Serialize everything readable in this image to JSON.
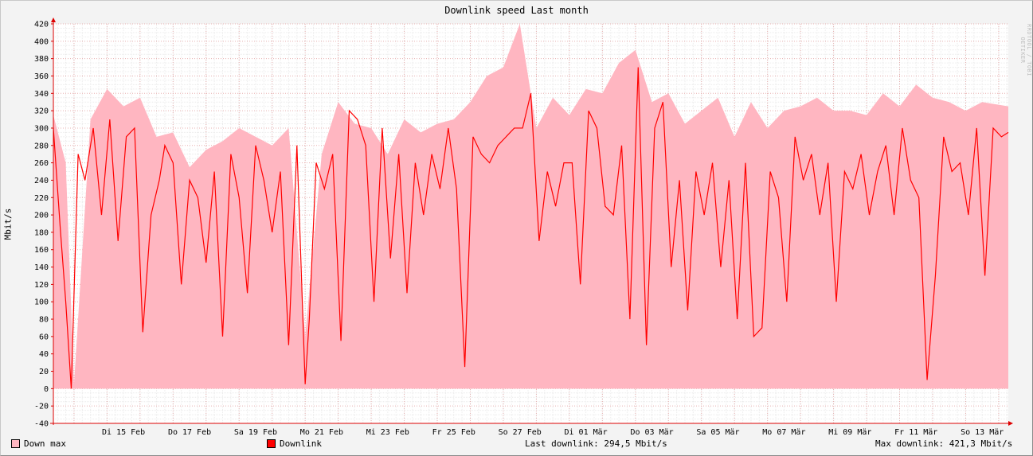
{
  "title": "Downlink speed Last month",
  "watermark": "RRDTOOL / TOBI OETIKER",
  "chart_data": {
    "type": "area",
    "title": "Downlink speed Last month",
    "ylabel": "Mbit/s",
    "xlabel": "",
    "ylim": [
      -40,
      420
    ],
    "yticks": [
      420,
      400,
      380,
      360,
      340,
      320,
      300,
      280,
      260,
      240,
      220,
      200,
      180,
      160,
      140,
      120,
      100,
      80,
      60,
      40,
      20,
      0,
      -20,
      -40
    ],
    "xlim": [
      "2022-02-13T09:00",
      "2022-03-14T07:00"
    ],
    "x_tick_labels": [
      "Di 15 Feb",
      "Do 17 Feb",
      "Sa 19 Feb",
      "Mo 21 Feb",
      "Mi 23 Feb",
      "Fr 25 Feb",
      "So 27 Feb",
      "Di 01 Mär",
      "Do 03 Mär",
      "Sa 05 Mär",
      "Mo 07 Mär",
      "Mi 09 Mär",
      "Fr 11 Mär",
      "So 13 Mär"
    ],
    "grid": true,
    "legend_position": "bottom",
    "series": [
      {
        "name": "Down max",
        "color": "#ffb6c1",
        "x": [
          "2022-02-13T09:00",
          "2022-02-13T18:00",
          "2022-02-14T00:00",
          "2022-02-14T12:00",
          "2022-02-15T00:00",
          "2022-02-15T12:00",
          "2022-02-16T00:00",
          "2022-02-16T12:00",
          "2022-02-17T00:00",
          "2022-02-17T12:00",
          "2022-02-18T00:00",
          "2022-02-18T12:00",
          "2022-02-19T00:00",
          "2022-02-19T12:00",
          "2022-02-20T00:00",
          "2022-02-20T12:00",
          "2022-02-21T00:00",
          "2022-02-21T12:00",
          "2022-02-22T00:00",
          "2022-02-22T12:00",
          "2022-02-23T00:00",
          "2022-02-23T12:00",
          "2022-02-24T00:00",
          "2022-02-24T12:00",
          "2022-02-25T00:00",
          "2022-02-25T12:00",
          "2022-02-26T00:00",
          "2022-02-26T12:00",
          "2022-02-27T00:00",
          "2022-02-27T12:00",
          "2022-02-28T00:00",
          "2022-02-28T12:00",
          "2022-03-01T00:00",
          "2022-03-01T12:00",
          "2022-03-02T00:00",
          "2022-03-02T12:00",
          "2022-03-03T00:00",
          "2022-03-03T12:00",
          "2022-03-04T00:00",
          "2022-03-04T12:00",
          "2022-03-05T00:00",
          "2022-03-05T12:00",
          "2022-03-06T00:00",
          "2022-03-06T12:00",
          "2022-03-07T00:00",
          "2022-03-07T12:00",
          "2022-03-08T00:00",
          "2022-03-08T12:00",
          "2022-03-09T00:00",
          "2022-03-09T12:00",
          "2022-03-10T00:00",
          "2022-03-10T12:00",
          "2022-03-11T00:00",
          "2022-03-11T12:00",
          "2022-03-12T00:00",
          "2022-03-12T12:00",
          "2022-03-13T00:00",
          "2022-03-13T12:00",
          "2022-03-14T07:00"
        ],
        "values": [
          315,
          260,
          5,
          310,
          345,
          325,
          335,
          290,
          295,
          255,
          275,
          285,
          300,
          290,
          280,
          300,
          60,
          270,
          330,
          305,
          300,
          270,
          310,
          295,
          305,
          310,
          330,
          360,
          370,
          420,
          300,
          335,
          315,
          345,
          340,
          375,
          390,
          330,
          340,
          305,
          320,
          335,
          290,
          330,
          300,
          320,
          325,
          335,
          320,
          320,
          315,
          340,
          325,
          350,
          335,
          330,
          320,
          330,
          325
        ]
      },
      {
        "name": "Downlink",
        "color": "#ff0000",
        "x": [
          "2022-02-13T09:00",
          "2022-02-13T14:00",
          "2022-02-13T18:00",
          "2022-02-13T22:00",
          "2022-02-14T03:00",
          "2022-02-14T08:00",
          "2022-02-14T14:00",
          "2022-02-14T20:00",
          "2022-02-15T02:00",
          "2022-02-15T08:00",
          "2022-02-15T14:00",
          "2022-02-15T20:00",
          "2022-02-16T02:00",
          "2022-02-16T08:00",
          "2022-02-16T14:00",
          "2022-02-16T18:00",
          "2022-02-17T00:00",
          "2022-02-17T06:00",
          "2022-02-17T12:00",
          "2022-02-17T18:00",
          "2022-02-18T00:00",
          "2022-02-18T06:00",
          "2022-02-18T12:00",
          "2022-02-18T18:00",
          "2022-02-19T00:00",
          "2022-02-19T06:00",
          "2022-02-19T12:00",
          "2022-02-19T18:00",
          "2022-02-20T00:00",
          "2022-02-20T06:00",
          "2022-02-20T12:00",
          "2022-02-20T18:00",
          "2022-02-21T00:00",
          "2022-02-21T03:00",
          "2022-02-21T08:00",
          "2022-02-21T14:00",
          "2022-02-21T20:00",
          "2022-02-22T02:00",
          "2022-02-22T08:00",
          "2022-02-22T14:00",
          "2022-02-22T20:00",
          "2022-02-23T02:00",
          "2022-02-23T08:00",
          "2022-02-23T14:00",
          "2022-02-23T20:00",
          "2022-02-24T02:00",
          "2022-02-24T08:00",
          "2022-02-24T14:00",
          "2022-02-24T20:00",
          "2022-02-25T02:00",
          "2022-02-25T08:00",
          "2022-02-25T14:00",
          "2022-02-25T20:00",
          "2022-02-26T02:00",
          "2022-02-26T08:00",
          "2022-02-26T14:00",
          "2022-02-26T20:00",
          "2022-02-27T02:00",
          "2022-02-27T08:00",
          "2022-02-27T14:00",
          "2022-02-27T20:00",
          "2022-02-28T02:00",
          "2022-02-28T08:00",
          "2022-02-28T14:00",
          "2022-02-28T20:00",
          "2022-03-01T02:00",
          "2022-03-01T08:00",
          "2022-03-01T14:00",
          "2022-03-01T20:00",
          "2022-03-02T02:00",
          "2022-03-02T08:00",
          "2022-03-02T14:00",
          "2022-03-02T20:00",
          "2022-03-03T02:00",
          "2022-03-03T08:00",
          "2022-03-03T14:00",
          "2022-03-03T20:00",
          "2022-03-04T02:00",
          "2022-03-04T08:00",
          "2022-03-04T14:00",
          "2022-03-04T20:00",
          "2022-03-05T02:00",
          "2022-03-05T08:00",
          "2022-03-05T14:00",
          "2022-03-05T20:00",
          "2022-03-06T02:00",
          "2022-03-06T08:00",
          "2022-03-06T14:00",
          "2022-03-06T20:00",
          "2022-03-07T02:00",
          "2022-03-07T08:00",
          "2022-03-07T14:00",
          "2022-03-07T20:00",
          "2022-03-08T02:00",
          "2022-03-08T08:00",
          "2022-03-08T14:00",
          "2022-03-08T20:00",
          "2022-03-09T02:00",
          "2022-03-09T08:00",
          "2022-03-09T14:00",
          "2022-03-09T20:00",
          "2022-03-10T02:00",
          "2022-03-10T08:00",
          "2022-03-10T14:00",
          "2022-03-10T20:00",
          "2022-03-11T02:00",
          "2022-03-11T08:00",
          "2022-03-11T14:00",
          "2022-03-11T20:00",
          "2022-03-12T02:00",
          "2022-03-12T08:00",
          "2022-03-12T14:00",
          "2022-03-12T20:00",
          "2022-03-13T02:00",
          "2022-03-13T08:00",
          "2022-03-13T14:00",
          "2022-03-13T20:00",
          "2022-03-14T02:00",
          "2022-03-14T07:00"
        ],
        "values": [
          300,
          185,
          100,
          0,
          270,
          240,
          300,
          200,
          310,
          170,
          290,
          300,
          65,
          200,
          240,
          280,
          260,
          120,
          240,
          220,
          145,
          250,
          60,
          270,
          220,
          110,
          280,
          240,
          180,
          250,
          50,
          280,
          5,
          80,
          260,
          230,
          270,
          55,
          320,
          310,
          280,
          100,
          300,
          150,
          270,
          110,
          260,
          200,
          270,
          230,
          300,
          230,
          25,
          290,
          270,
          260,
          280,
          290,
          300,
          300,
          340,
          170,
          250,
          210,
          260,
          260,
          120,
          320,
          300,
          210,
          200,
          280,
          80,
          370,
          50,
          300,
          330,
          140,
          240,
          90,
          250,
          200,
          260,
          140,
          240,
          80,
          260,
          60,
          70,
          250,
          220,
          100,
          290,
          240,
          270,
          200,
          260,
          100,
          250,
          230,
          270,
          200,
          250,
          280,
          200,
          300,
          240,
          220,
          10,
          130,
          290,
          250,
          260,
          200,
          300,
          130,
          300,
          290,
          295
        ]
      }
    ]
  },
  "legend": {
    "down_max": "Down max",
    "downlink": "Downlink",
    "down_max_color": "#ffb6c1",
    "downlink_color": "#ff0000"
  },
  "stats": {
    "last_downlink": "Last downlink: 294,5 Mbit/s",
    "max_downlink": "Max downlink: 421,3 Mbit/s"
  }
}
